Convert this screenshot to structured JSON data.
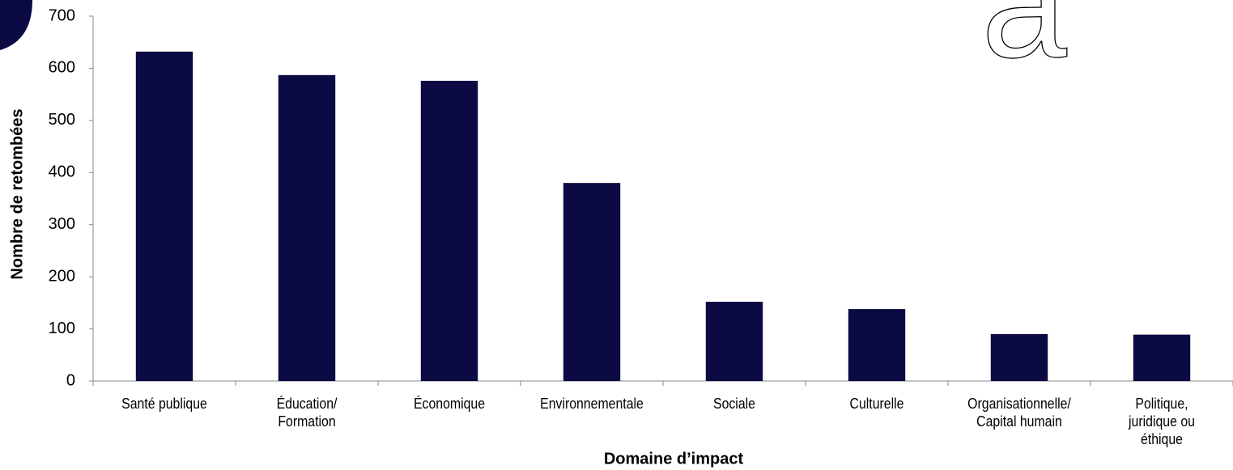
{
  "chart_data": {
    "type": "bar",
    "x_label": "Domaine d’impact",
    "y_label": "Nombre de retombées",
    "annotations": [
      "a"
    ],
    "categories": [
      "Santé publique",
      "Éducation/\nFormation",
      "Économique",
      "Environnementale",
      "Sociale",
      "Culturelle",
      "Organisationnelle/\nCapital humain",
      "Politique,\njuridique ou\néthique"
    ],
    "values": [
      632,
      587,
      576,
      380,
      152,
      138,
      90,
      89
    ],
    "color": "#0b0a42",
    "ylim": [
      0,
      700
    ],
    "yticks": [
      0,
      100,
      200,
      300,
      400,
      500,
      600,
      700
    ],
    "grid": false
  }
}
